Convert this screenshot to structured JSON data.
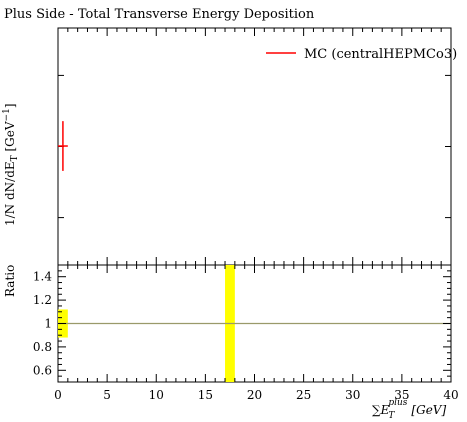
{
  "chart_data": [
    {
      "type": "scatter",
      "title": "Plus Side - Total Transverse Energy Deposition",
      "ylabel": "1/N dN/dE_T [GeV^-1]",
      "ylabel_parts": {
        "prefix": "1/N dN/dE",
        "sub": "T",
        "unit_pre": " [GeV",
        "sup": "−1",
        "unit_post": "]"
      },
      "yscale": "log",
      "legend": {
        "position": "top-right",
        "label": "MC (centralHEPMCo3)"
      },
      "xlim": [
        0,
        40
      ],
      "series": [
        {
          "name": "MC (centralHEPMCo3)",
          "color": "#ff0000",
          "points": [
            {
              "x": 0.5,
              "x_err": 0.5,
              "y_rel": 0.5,
              "y_err_rel_up": 0.14,
              "y_err_rel_down": 0.14
            }
          ]
        }
      ]
    },
    {
      "type": "bar",
      "ylabel": "Ratio",
      "xlabel_parts": {
        "sum": "∑",
        "E": "E",
        "sub": "T",
        "sup": "plus",
        "unit": "[GeV]"
      },
      "xlim": [
        0,
        40
      ],
      "ylim": [
        0.5,
        1.5
      ],
      "x_ticks": [
        0,
        5,
        10,
        15,
        20,
        25,
        30,
        35,
        40
      ],
      "y_ticks": [
        0.6,
        0.8,
        1,
        1.2,
        1.4
      ],
      "y_tick_labels": [
        "0.6",
        "0.8",
        "1",
        "1.2",
        "1.4"
      ],
      "reference_line": {
        "y": 1,
        "color": "#9a9a6a"
      },
      "bands": [
        {
          "x0": 0,
          "x1": 1,
          "y0": 0.88,
          "y1": 1.12,
          "color": "#ffff00"
        },
        {
          "x0": 17,
          "x1": 18,
          "y0": 0.5,
          "y1": 1.5,
          "color": "#ffff00"
        }
      ]
    }
  ]
}
